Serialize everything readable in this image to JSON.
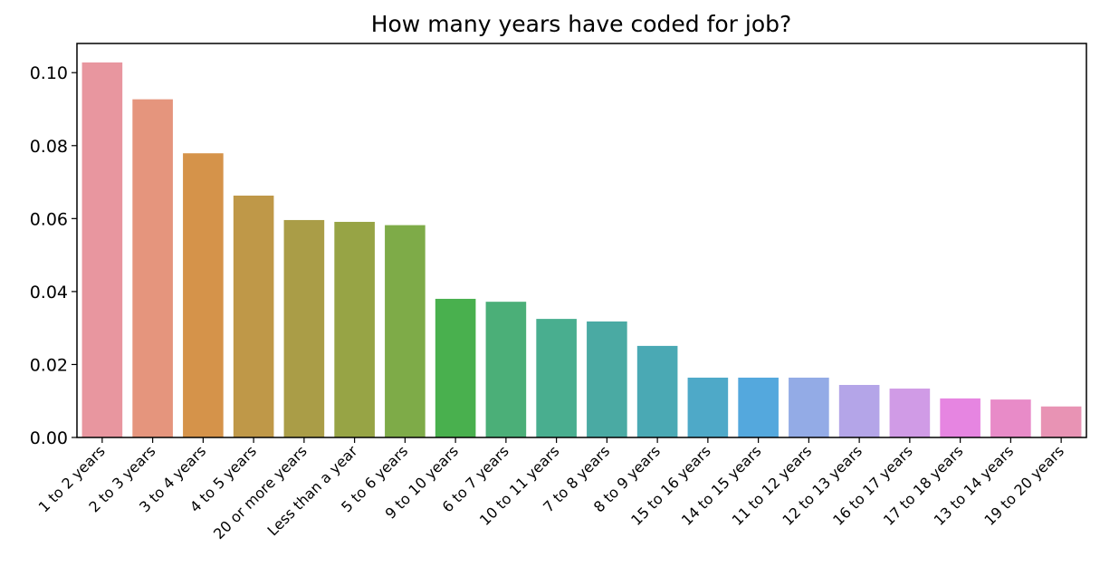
{
  "chart_data": {
    "type": "bar",
    "title": "How many years have coded for job?",
    "xlabel": "",
    "ylabel": "",
    "ylim": [
      0,
      0.108
    ],
    "yticks": [
      "0.00",
      "0.02",
      "0.04",
      "0.06",
      "0.08",
      "0.10"
    ],
    "grid": false,
    "categories": [
      "1 to 2 years",
      "2 to 3 years",
      "3 to 4 years",
      "4 to 5 years",
      "20 or more years",
      "Less than a year",
      "5 to 6 years",
      "9 to 10 years",
      "6 to 7 years",
      "10 to 11 years",
      "7 to 8 years",
      "8 to 9 years",
      "15 to 16 years",
      "14 to 15 years",
      "11 to 12 years",
      "12 to 13 years",
      "16 to 17 years",
      "17 to 18 years",
      "13 to 14 years",
      "19 to 20 years"
    ],
    "values": [
      0.1028,
      0.0927,
      0.0779,
      0.0663,
      0.0596,
      0.0591,
      0.0582,
      0.038,
      0.0372,
      0.0325,
      0.0318,
      0.0251,
      0.0164,
      0.0164,
      0.0164,
      0.0144,
      0.0134,
      0.0107,
      0.0104,
      0.0085
    ],
    "colors": [
      "#e8969f",
      "#e5957d",
      "#d5934a",
      "#bf9848",
      "#aa9d47",
      "#97a445",
      "#7eab48",
      "#49b04e",
      "#4baf78",
      "#49ae8f",
      "#4aaaa3",
      "#4aa9b4",
      "#4ea9c8",
      "#54a8dd",
      "#93abe6",
      "#b4a5e8",
      "#d09be6",
      "#e685e1",
      "#e88bc8",
      "#e893b4"
    ]
  }
}
